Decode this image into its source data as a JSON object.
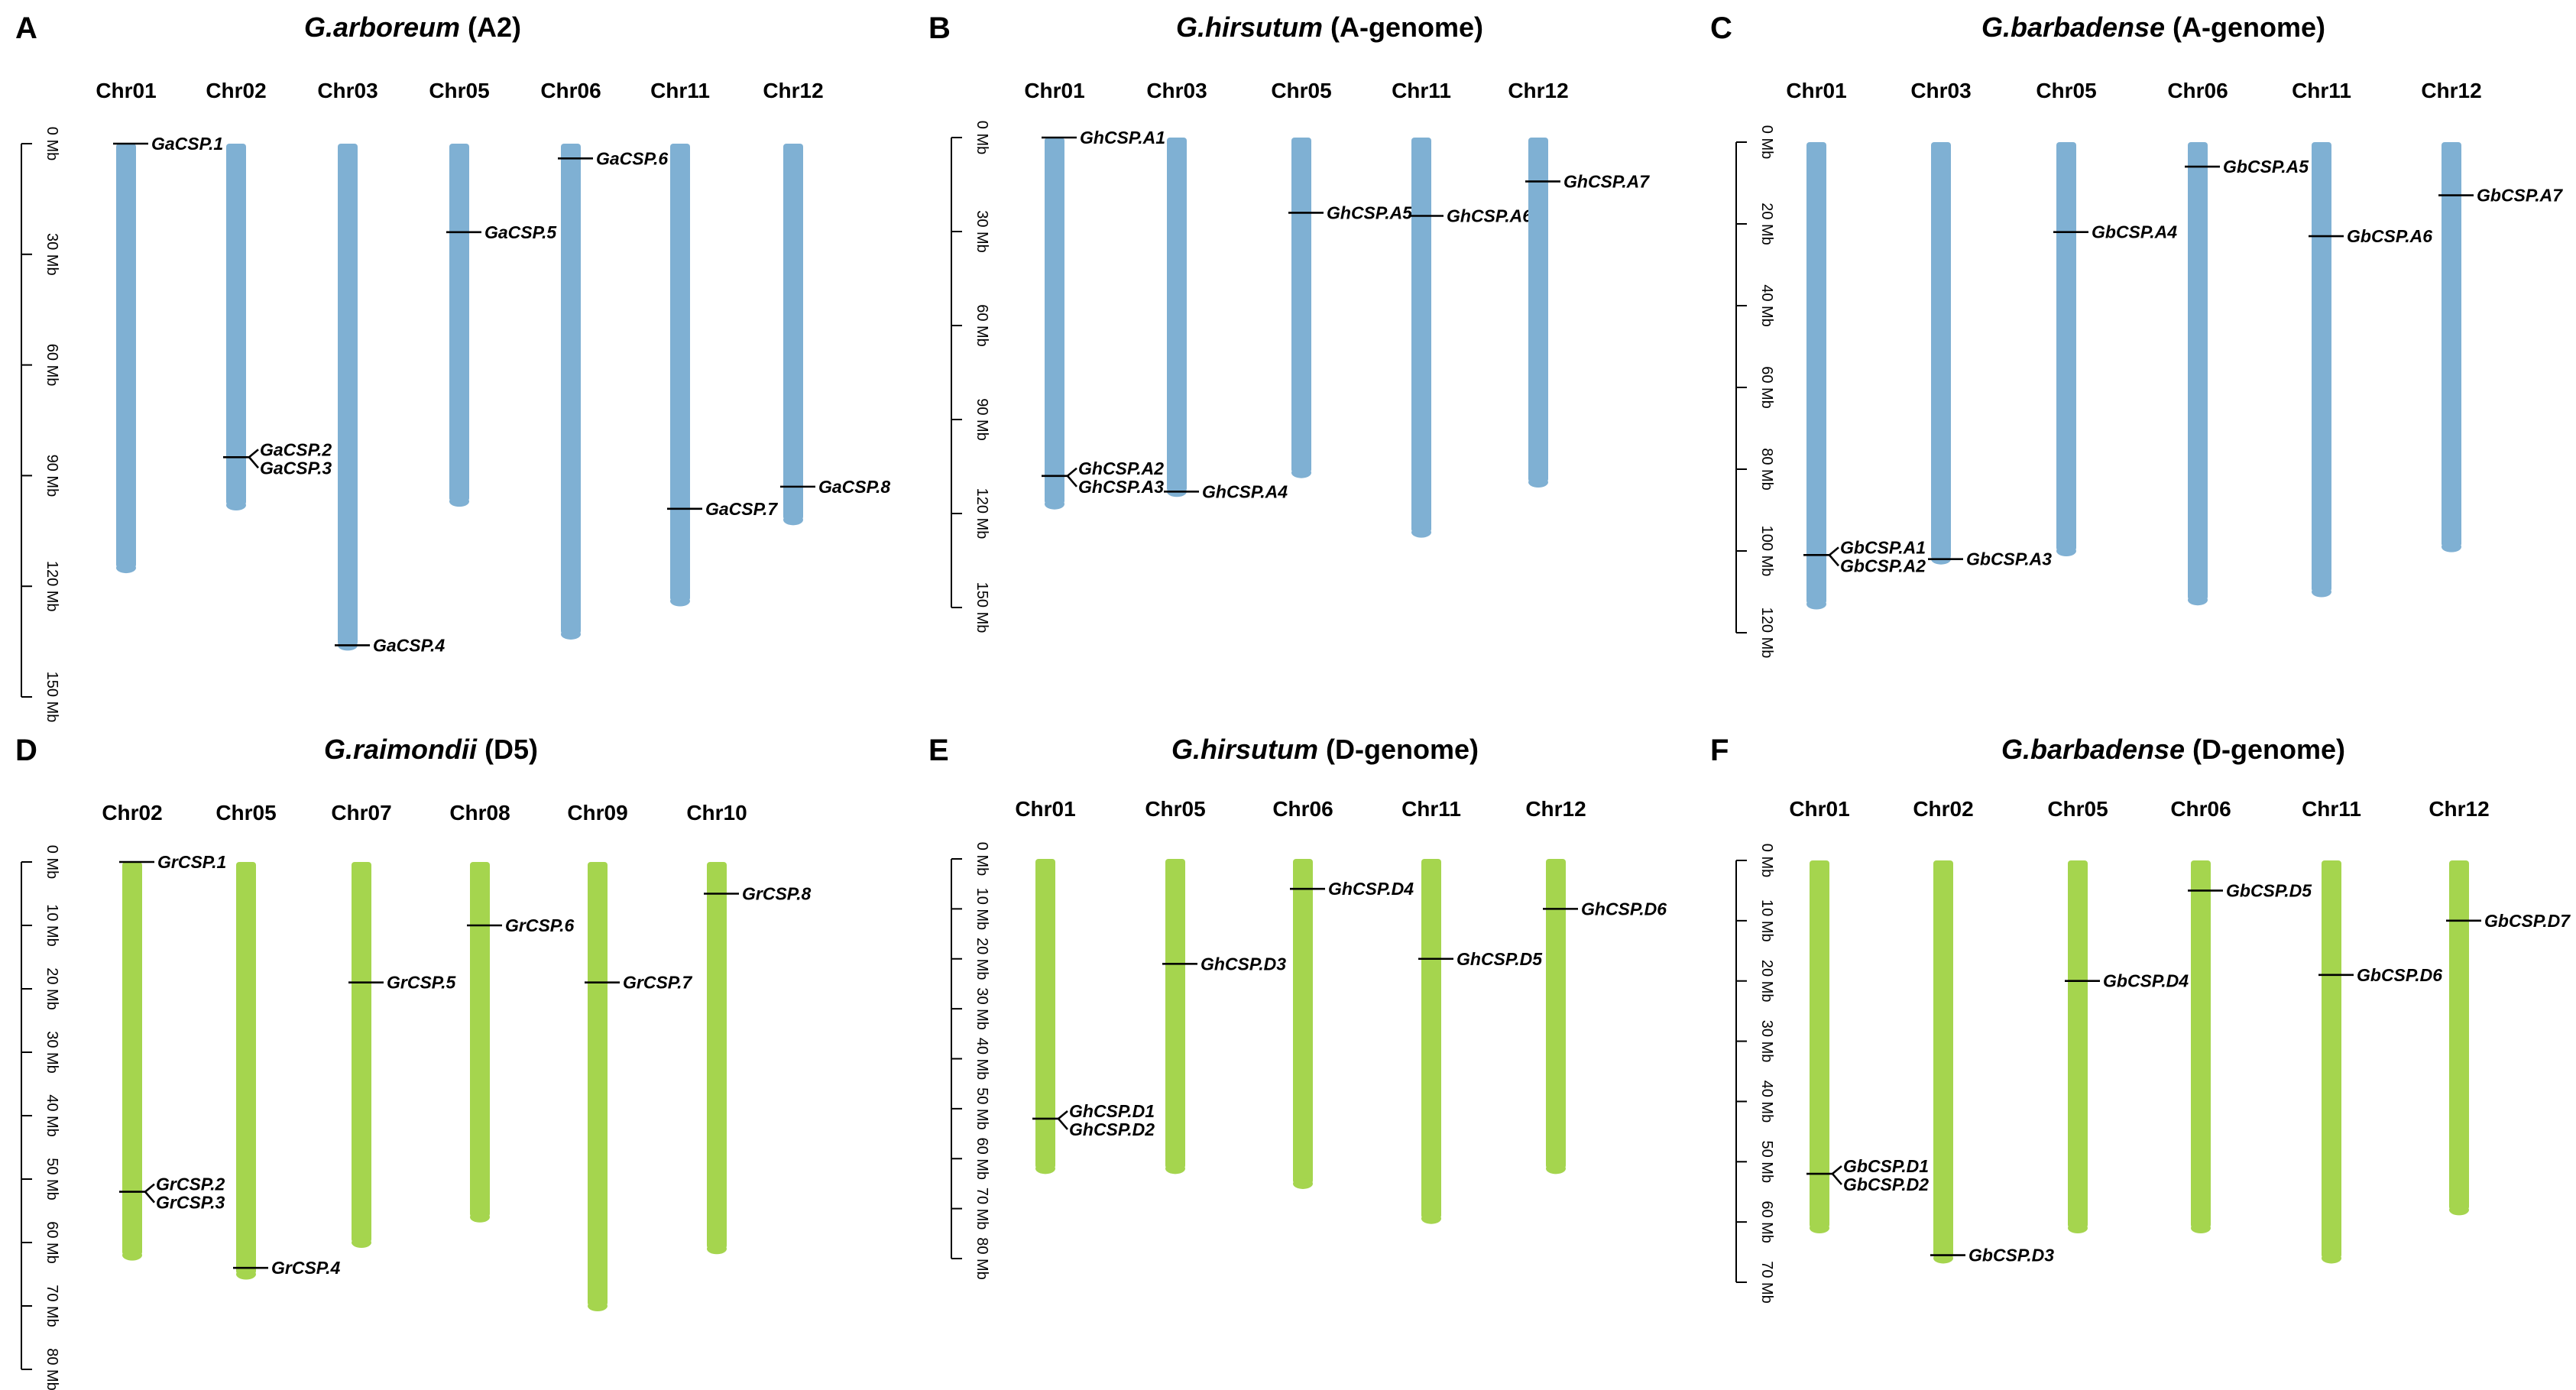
{
  "figure": {
    "colors": {
      "blue": "#7fb0d3",
      "green": "#a5d54e",
      "line": "#000000"
    },
    "panels": [
      {
        "id": "A",
        "letter": "A",
        "title_italic": "G.arboreum",
        "title_rest": "  (A2)",
        "color": "blue",
        "axis_max": 150,
        "axis_ticks": [
          0,
          30,
          60,
          90,
          120,
          150
        ],
        "unit": "Mb",
        "chromosomes": [
          {
            "name": "Chr01",
            "length": 115,
            "genes": [
              {
                "label": "GaCSP.1",
                "pos": 0
              }
            ]
          },
          {
            "name": "Chr02",
            "length": 98,
            "genes": [
              {
                "label": "GaCSP.2",
                "pos": 85
              },
              {
                "label": "GaCSP.3",
                "pos": 85
              }
            ]
          },
          {
            "name": "Chr03",
            "length": 136,
            "genes": [
              {
                "label": "GaCSP.4",
                "pos": 136
              }
            ]
          },
          {
            "name": "Chr05",
            "length": 97,
            "genes": [
              {
                "label": "GaCSP.5",
                "pos": 24
              }
            ]
          },
          {
            "name": "Chr06",
            "length": 133,
            "genes": [
              {
                "label": "GaCSP.6",
                "pos": 4
              }
            ]
          },
          {
            "name": "Chr11",
            "length": 124,
            "genes": [
              {
                "label": "GaCSP.7",
                "pos": 99
              }
            ]
          },
          {
            "name": "Chr12",
            "length": 102,
            "genes": [
              {
                "label": "GaCSP.8",
                "pos": 93
              }
            ]
          }
        ]
      },
      {
        "id": "B",
        "letter": "B",
        "title_italic": "G.hirsutum",
        "title_rest": " (A-genome)",
        "color": "blue",
        "axis_max": 150,
        "axis_ticks": [
          0,
          30,
          60,
          90,
          120,
          150
        ],
        "unit": "Mb",
        "chromosomes": [
          {
            "name": "Chr01",
            "length": 117,
            "genes": [
              {
                "label": "GhCSP.A1",
                "pos": 0
              },
              {
                "label": "GhCSP.A2",
                "pos": 108
              },
              {
                "label": "GhCSP.A3",
                "pos": 108
              }
            ]
          },
          {
            "name": "Chr03",
            "length": 113,
            "genes": [
              {
                "label": "GhCSP.A4",
                "pos": 113
              }
            ]
          },
          {
            "name": "Chr05",
            "length": 107,
            "genes": [
              {
                "label": "GhCSP.A5",
                "pos": 24
              }
            ]
          },
          {
            "name": "Chr11",
            "length": 126,
            "genes": [
              {
                "label": "GhCSP.A6",
                "pos": 25
              }
            ]
          },
          {
            "name": "Chr12",
            "length": 110,
            "genes": [
              {
                "label": "GhCSP.A7",
                "pos": 14
              }
            ]
          }
        ]
      },
      {
        "id": "C",
        "letter": "C",
        "title_italic": "G.barbadense",
        "title_rest": " (A-genome)",
        "color": "blue",
        "axis_max": 120,
        "axis_ticks": [
          0,
          20,
          40,
          60,
          80,
          100,
          120
        ],
        "unit": "Mb",
        "chromosomes": [
          {
            "name": "Chr01",
            "length": 113,
            "genes": [
              {
                "label": "GbCSP.A1",
                "pos": 101
              },
              {
                "label": "GbCSP.A2",
                "pos": 101
              }
            ]
          },
          {
            "name": "Chr03",
            "length": 102,
            "genes": [
              {
                "label": "GbCSP.A3",
                "pos": 102
              }
            ]
          },
          {
            "name": "Chr05",
            "length": 100,
            "genes": [
              {
                "label": "GbCSP.A4",
                "pos": 22
              }
            ]
          },
          {
            "name": "Chr06",
            "length": 112,
            "genes": [
              {
                "label": "GbCSP.A5",
                "pos": 6
              }
            ]
          },
          {
            "name": "Chr11",
            "length": 110,
            "genes": [
              {
                "label": "GbCSP.A6",
                "pos": 23
              }
            ]
          },
          {
            "name": "Chr12",
            "length": 99,
            "genes": [
              {
                "label": "GbCSP.A7",
                "pos": 13
              }
            ]
          }
        ]
      },
      {
        "id": "D",
        "letter": "D",
        "title_italic": "G.raimondii",
        "title_rest": "  (D5)",
        "color": "green",
        "axis_max": 80,
        "axis_ticks": [
          0,
          10,
          20,
          30,
          40,
          50,
          60,
          70,
          80
        ],
        "unit": "Mb",
        "chromosomes": [
          {
            "name": "Chr02",
            "length": 62,
            "genes": [
              {
                "label": "GrCSP.1",
                "pos": 0
              },
              {
                "label": "GrCSP.2",
                "pos": 52
              },
              {
                "label": "GrCSP.3",
                "pos": 52
              }
            ]
          },
          {
            "name": "Chr05",
            "length": 65,
            "genes": [
              {
                "label": "GrCSP.4",
                "pos": 64
              }
            ]
          },
          {
            "name": "Chr07",
            "length": 60,
            "genes": [
              {
                "label": "GrCSP.5",
                "pos": 19
              }
            ]
          },
          {
            "name": "Chr08",
            "length": 56,
            "genes": [
              {
                "label": "GrCSP.6",
                "pos": 10
              }
            ]
          },
          {
            "name": "Chr09",
            "length": 70,
            "genes": [
              {
                "label": "GrCSP.7",
                "pos": 19
              }
            ]
          },
          {
            "name": "Chr10",
            "length": 61,
            "genes": [
              {
                "label": "GrCSP.8",
                "pos": 5
              }
            ]
          }
        ]
      },
      {
        "id": "E",
        "letter": "E",
        "title_italic": "G.hirsutum",
        "title_rest": " (D-genome)",
        "color": "green",
        "axis_max": 80,
        "axis_ticks": [
          0,
          10,
          20,
          30,
          40,
          50,
          60,
          70,
          80
        ],
        "unit": "Mb",
        "chromosomes": [
          {
            "name": "Chr01",
            "length": 62,
            "genes": [
              {
                "label": "GhCSP.D1",
                "pos": 52
              },
              {
                "label": "GhCSP.D2",
                "pos": 52
              }
            ]
          },
          {
            "name": "Chr05",
            "length": 62,
            "genes": [
              {
                "label": "GhCSP.D3",
                "pos": 21
              }
            ]
          },
          {
            "name": "Chr06",
            "length": 65,
            "genes": [
              {
                "label": "GhCSP.D4",
                "pos": 6
              }
            ]
          },
          {
            "name": "Chr11",
            "length": 72,
            "genes": [
              {
                "label": "GhCSP.D5",
                "pos": 20
              }
            ]
          },
          {
            "name": "Chr12",
            "length": 62,
            "genes": [
              {
                "label": "GhCSP.D6",
                "pos": 10
              }
            ]
          }
        ]
      },
      {
        "id": "F",
        "letter": "F",
        "title_italic": "G.barbadense",
        "title_rest": " (D-genome)",
        "color": "green",
        "axis_max": 70,
        "axis_ticks": [
          0,
          10,
          20,
          30,
          40,
          50,
          60,
          70
        ],
        "unit": "Mb",
        "chromosomes": [
          {
            "name": "Chr01",
            "length": 61,
            "genes": [
              {
                "label": "GbCSP.D1",
                "pos": 52
              },
              {
                "label": "GbCSP.D2",
                "pos": 52
              }
            ]
          },
          {
            "name": "Chr02",
            "length": 66,
            "genes": [
              {
                "label": "GbCSP.D3",
                "pos": 65.5
              }
            ]
          },
          {
            "name": "Chr05",
            "length": 61,
            "genes": [
              {
                "label": "GbCSP.D4",
                "pos": 20
              }
            ]
          },
          {
            "name": "Chr06",
            "length": 61,
            "genes": [
              {
                "label": "GbCSP.D5",
                "pos": 5
              }
            ]
          },
          {
            "name": "Chr11",
            "length": 66,
            "genes": [
              {
                "label": "GbCSP.D6",
                "pos": 19
              }
            ]
          },
          {
            "name": "Chr12",
            "length": 58,
            "genes": [
              {
                "label": "GbCSP.D7",
                "pos": 10
              }
            ]
          }
        ]
      }
    ]
  }
}
